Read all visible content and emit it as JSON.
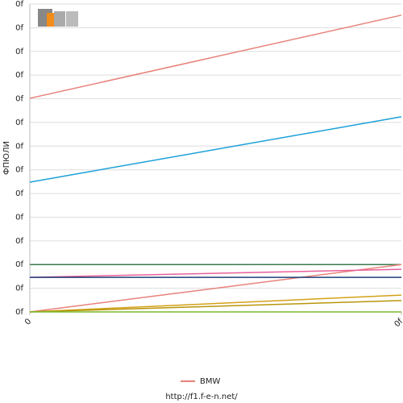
{
  "chart_data": {
    "type": "line",
    "y_label": "ФПЮЛИ",
    "footer": "http://f1.f-e-n.net/",
    "x": [
      0,
      1
    ],
    "xlim": [
      0,
      1
    ],
    "xticks": [
      0,
      {
        "value": 1,
        "label": "0f"
      }
    ],
    "ylim": [
      0,
      13
    ],
    "yticks": [
      {
        "value": 0,
        "label": "0f"
      },
      {
        "value": 1,
        "label": "0f"
      },
      {
        "value": 2,
        "label": "0f"
      },
      {
        "value": 3,
        "label": "0f"
      },
      {
        "value": 4,
        "label": "0f"
      },
      {
        "value": 5,
        "label": "0f"
      },
      {
        "value": 6,
        "label": "0f"
      },
      {
        "value": 7,
        "label": "0f"
      },
      {
        "value": 8,
        "label": "0f"
      },
      {
        "value": 9,
        "label": "0f"
      },
      {
        "value": 10,
        "label": "0f"
      },
      {
        "value": 11,
        "label": "0f"
      },
      {
        "value": 12,
        "label": "0f"
      },
      {
        "value": 13,
        "label": "0f"
      }
    ],
    "grid": true,
    "series": [
      {
        "name": "BMW",
        "color": "#e8827a",
        "values": [
          9.02,
          12.53
        ]
      },
      {
        "color": "#1ba1d8",
        "values": [
          5.48,
          8.24
        ]
      },
      {
        "color": "#3d7a4e",
        "values": [
          2.0,
          2.0
        ]
      },
      {
        "color": "#e8827a",
        "values": [
          0,
          2.0
        ]
      },
      {
        "color": "#e8609a",
        "values": [
          1.46,
          1.8
        ]
      },
      {
        "color": "#1f3f7a",
        "values": [
          1.46,
          1.46
        ]
      },
      {
        "color": "#d4a017",
        "values": [
          0,
          0.71
        ]
      },
      {
        "color": "#b8960a",
        "values": [
          0,
          0.48
        ]
      },
      {
        "color": "#7ab82e",
        "values": [
          0,
          0
        ]
      }
    ]
  }
}
